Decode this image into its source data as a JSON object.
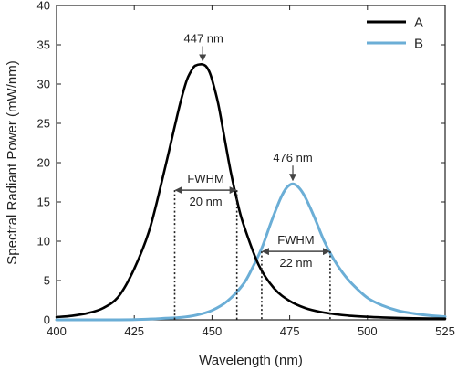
{
  "chart_data": {
    "type": "line",
    "xlabel": "Wavelength (nm)",
    "ylabel": "Spectral Radiant Power (mW/nm)",
    "xlim": [
      400,
      525
    ],
    "ylim": [
      0,
      40
    ],
    "xticks": [
      400,
      425,
      450,
      475,
      500,
      525
    ],
    "yticks": [
      0,
      5,
      10,
      15,
      20,
      25,
      30,
      35,
      40
    ],
    "grid": false,
    "legend_position": "top-right",
    "series": [
      {
        "name": "A",
        "color": "#000000",
        "peak_wavelength": 447,
        "peak_value": 32.5,
        "fwhm": 20,
        "x": [
          400,
          405,
          410,
          415,
          420,
          425,
          430,
          435,
          438,
          440,
          442,
          444,
          445,
          446,
          447,
          448,
          449,
          450,
          452,
          454,
          456,
          458,
          460,
          465,
          470,
          475,
          480,
          485,
          490,
          495,
          500,
          505,
          510,
          515,
          520,
          525
        ],
        "values": [
          0.35,
          0.52,
          0.85,
          1.5,
          3.0,
          6.5,
          11.6,
          19.5,
          24.6,
          27.9,
          30.6,
          32.1,
          32.4,
          32.5,
          32.5,
          32.3,
          31.7,
          30.6,
          27.5,
          23.2,
          18.9,
          15.3,
          12.3,
          7.0,
          4.0,
          2.4,
          1.5,
          1.0,
          0.7,
          0.5,
          0.38,
          0.3,
          0.24,
          0.2,
          0.17,
          0.15
        ]
      },
      {
        "name": "B",
        "color": "#6baed6",
        "peak_wavelength": 476,
        "peak_value": 17.3,
        "fwhm": 22,
        "x": [
          400,
          420,
          430,
          435,
          440,
          445,
          450,
          455,
          460,
          463,
          466,
          469,
          472,
          474,
          476,
          478,
          480,
          483,
          486,
          489,
          492,
          495,
          500,
          505,
          510,
          515,
          520,
          525
        ],
        "values": [
          0.0,
          0.0,
          0.1,
          0.2,
          0.3,
          0.6,
          1.2,
          2.4,
          4.5,
          6.6,
          9.1,
          12.4,
          15.4,
          16.8,
          17.3,
          16.8,
          15.6,
          13.0,
          10.1,
          7.8,
          6.0,
          4.6,
          2.8,
          1.8,
          1.15,
          0.8,
          0.55,
          0.4
        ]
      }
    ],
    "annotations": {
      "peak_a_label": "447 nm",
      "peak_b_label": "476 nm",
      "fwhm_a": {
        "label": "FWHM",
        "value_label": "20 nm",
        "x_start": 438,
        "x_end": 458,
        "y": 16.5
      },
      "fwhm_b": {
        "label": "FWHM",
        "value_label": "22 nm",
        "x_start": 466,
        "x_end": 488,
        "y": 8.7
      }
    }
  }
}
